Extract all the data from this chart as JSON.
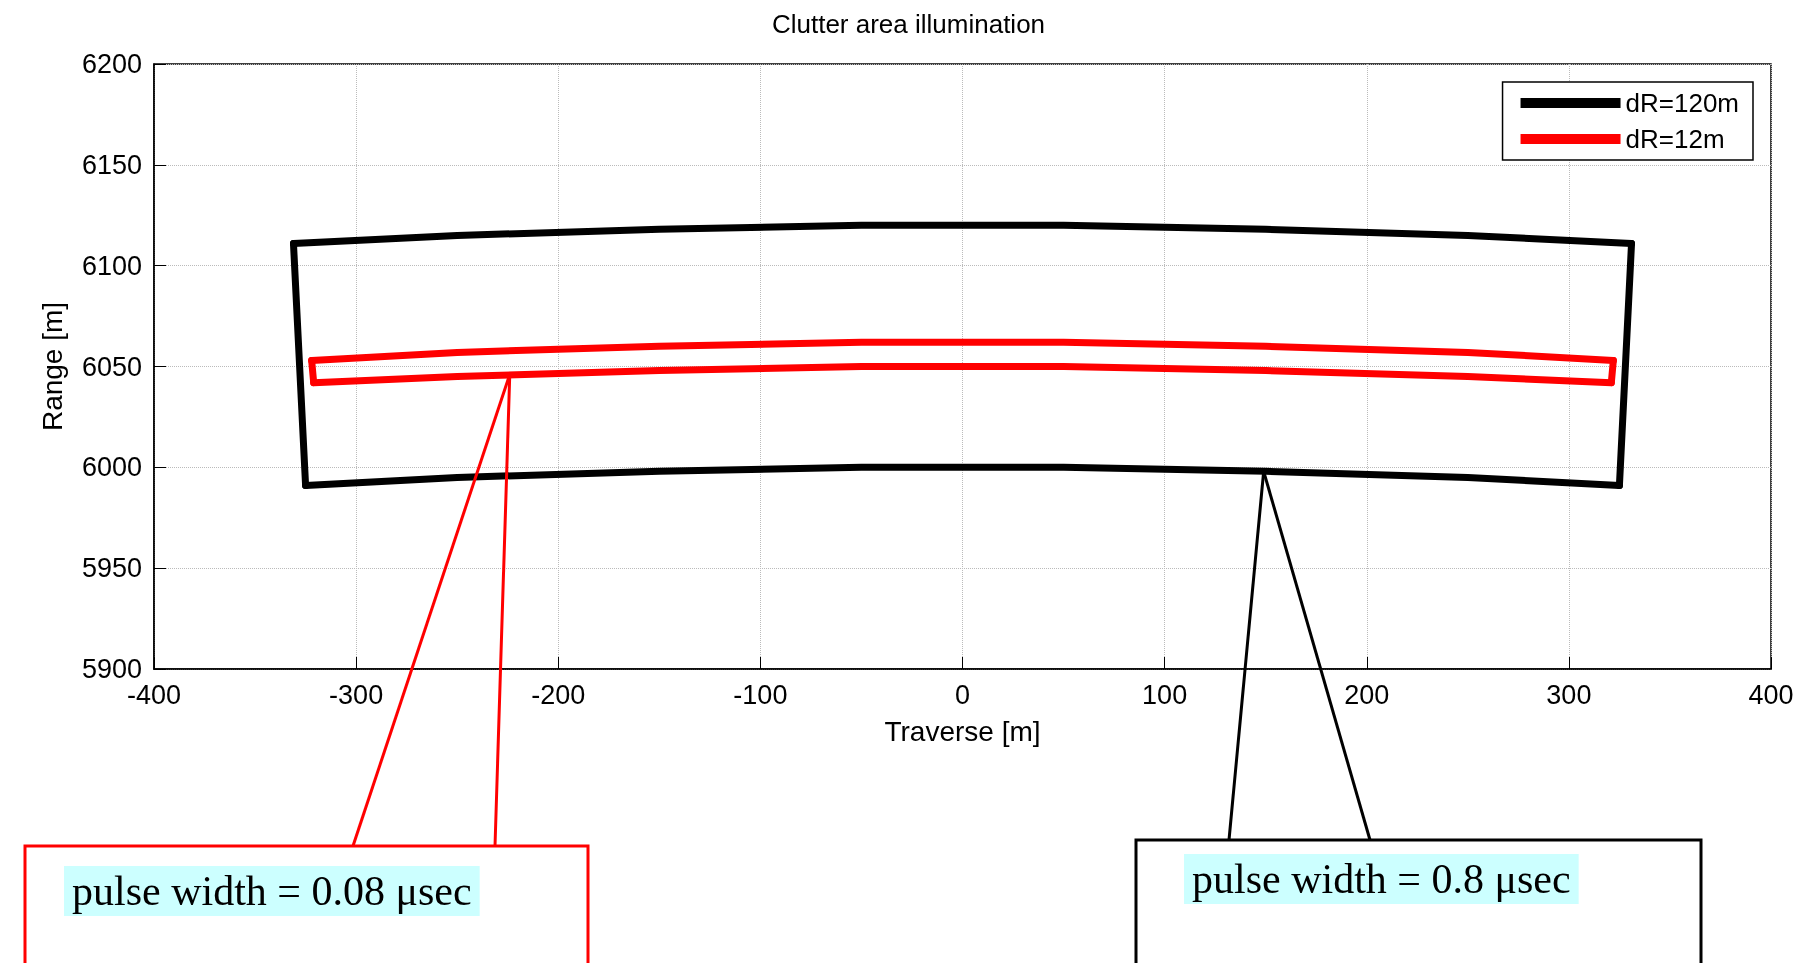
{
  "chart_data": {
    "type": "line",
    "title": "Clutter area illumination",
    "xlabel": "Traverse [m]",
    "ylabel": "Range [m]",
    "xlim": [
      -400,
      400
    ],
    "xticks": [
      -400,
      -300,
      -200,
      -100,
      0,
      100,
      200,
      300,
      400
    ],
    "ylim": [
      5900,
      6200
    ],
    "yticks": [
      5900,
      5950,
      6000,
      6050,
      6100,
      6150,
      6200
    ],
    "grid": true,
    "legend": "top right",
    "marker": "none",
    "line_style": "solid",
    "series": [
      {
        "name": "dR=120m",
        "color": "#000000",
        "x": [
          -331,
          -250,
          -150,
          -50,
          0,
          50,
          150,
          250,
          331
        ],
        "values": [
          6111,
          6115,
          6118,
          6120,
          6120,
          6120,
          6118,
          6115,
          6111
        ]
      },
      {
        "color": "#000000",
        "x": [
          -325,
          -250,
          -150,
          -50,
          0,
          50,
          150,
          250,
          325
        ],
        "values": [
          5991,
          5995,
          5998,
          6000,
          6000,
          6000,
          5998,
          5995,
          5991
        ]
      },
      {
        "color": "#000000",
        "x": [
          -331,
          -325
        ],
        "values": [
          6111,
          5991
        ]
      },
      {
        "color": "#000000",
        "x": [
          325,
          331
        ],
        "values": [
          5991,
          6111
        ]
      },
      {
        "name": "dR=12m",
        "color": "#ff0000",
        "x": [
          -322,
          -250,
          -150,
          -50,
          0,
          50,
          150,
          250,
          322
        ],
        "values": [
          6053,
          6057,
          6060,
          6062,
          6062,
          6062,
          6060,
          6057,
          6053
        ]
      },
      {
        "color": "#ff0000",
        "x": [
          -321,
          -250,
          -150,
          -50,
          0,
          50,
          150,
          250,
          321
        ],
        "values": [
          6042,
          6045,
          6048,
          6050,
          6050,
          6050,
          6048,
          6045,
          6042
        ]
      },
      {
        "color": "#ff0000",
        "x": [
          -322,
          -321
        ],
        "values": [
          6053,
          6042
        ]
      },
      {
        "color": "#ff0000",
        "x": [
          321,
          322
        ],
        "values": [
          6042,
          6053
        ]
      }
    ],
    "annotations": [
      {
        "text": "pulse width = 0.08 μsec",
        "x": -224,
        "y": 6046
      },
      {
        "text": "pulse width = 0.8 μsec",
        "x": 149,
        "y": 5998
      }
    ]
  }
}
